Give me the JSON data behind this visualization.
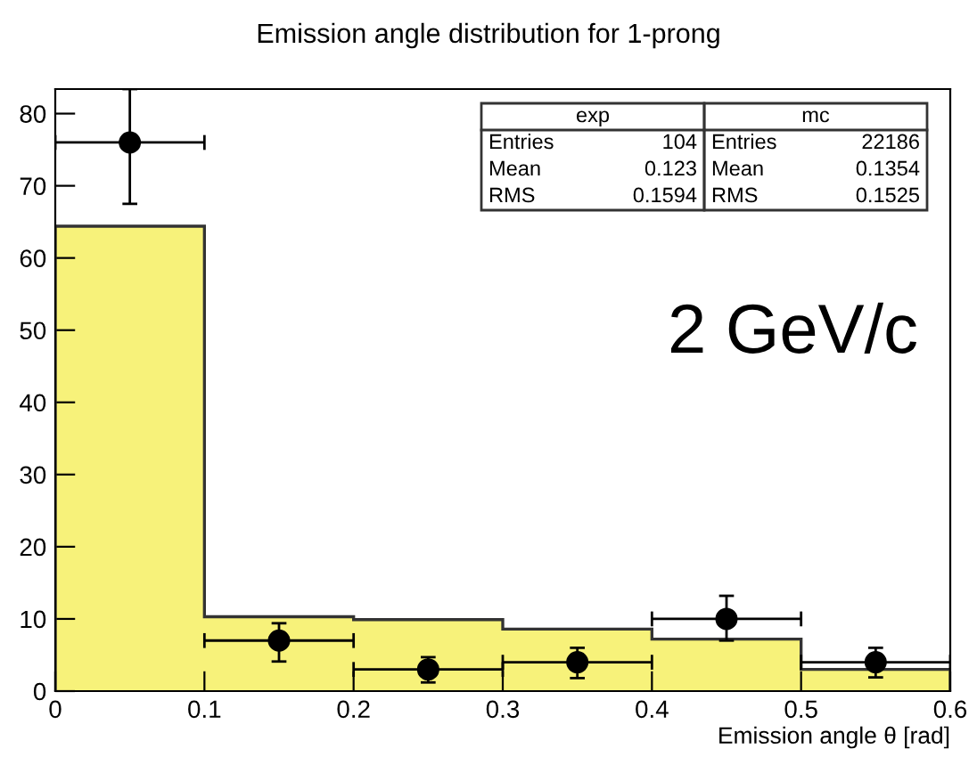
{
  "chart_data": {
    "type": "histogram",
    "title": "Emission angle distribution for 1-prong",
    "xlabel": "Emission angle θ [rad]",
    "bins": [
      0,
      0.1,
      0.2,
      0.3,
      0.4,
      0.5,
      0.6
    ],
    "series": [
      {
        "type": "histogram",
        "color": "#f7f27a",
        "values": [
          64.4,
          10.3,
          9.9,
          8.6,
          7.2,
          3.0
        ]
      },
      {
        "type": "scatter",
        "color": "#000000",
        "x": [
          0.05,
          0.15,
          0.25,
          0.35,
          0.45,
          0.55
        ],
        "values": [
          76,
          7,
          3,
          4,
          10,
          4
        ],
        "errors": [
          [
            67.5,
            83.4
          ],
          [
            4.1,
            9.4
          ],
          [
            1.2,
            4.7
          ],
          [
            1.8,
            6.0
          ],
          [
            7.0,
            13.2
          ],
          [
            1.9,
            6.0
          ]
        ],
        "xerrors": [
          0.05,
          0.05,
          0.05,
          0.05,
          0.05,
          0.05
        ]
      }
    ],
    "marker": "circle",
    "xlim": [
      0,
      0.6
    ],
    "ylim": [
      0,
      83.4
    ],
    "xticks": [
      0,
      0.1,
      0.2,
      0.3,
      0.4,
      0.5,
      0.6
    ],
    "yticks": [
      0,
      10,
      20,
      30,
      40,
      50,
      60,
      70,
      80
    ],
    "grid": false,
    "legend": false,
    "annotations": [
      "exp",
      "Entries",
      "104",
      "Mean",
      "0.123",
      "RMS",
      "0.1594",
      "mc",
      "Entries",
      "22186",
      "Mean",
      "0.1354",
      "RMS",
      "0.1525",
      "2 GeV/c"
    ]
  }
}
